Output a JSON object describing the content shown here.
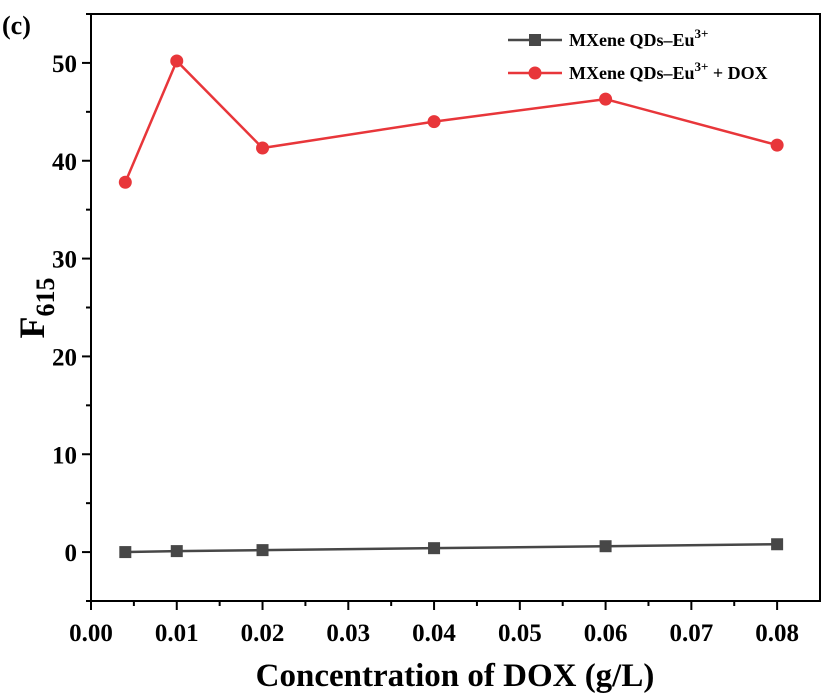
{
  "panel_label": "(c)",
  "colors": {
    "series_1": "#474747",
    "series_2": "#e8363a",
    "axis": "#000000"
  },
  "chart_data": {
    "type": "line",
    "xlabel": "Concentration of DOX (g/L)",
    "ylabel": {
      "main": "F",
      "subscript": "615"
    },
    "xlim": [
      0.0,
      0.085
    ],
    "ylim": [
      -5,
      55
    ],
    "x_ticks": [
      "0.00",
      "0.01",
      "0.02",
      "0.03",
      "0.04",
      "0.05",
      "0.06",
      "0.07",
      "0.08"
    ],
    "y_ticks": [
      "0",
      "10",
      "20",
      "30",
      "40",
      "50"
    ],
    "x": [
      0.004,
      0.01,
      0.02,
      0.04,
      0.06,
      0.08
    ],
    "series": [
      {
        "name": {
          "base": "MXene QDs–Eu",
          "sup": "3+",
          "suffix": ""
        },
        "marker": "square",
        "values": [
          0.0,
          0.1,
          0.2,
          0.4,
          0.6,
          0.8
        ]
      },
      {
        "name": {
          "base": "MXene QDs–Eu",
          "sup": "3+",
          "suffix": " + DOX"
        },
        "marker": "circle",
        "values": [
          37.8,
          50.2,
          41.3,
          44.0,
          46.3,
          41.6
        ]
      }
    ],
    "legend_position": "top-right",
    "grid": false
  }
}
